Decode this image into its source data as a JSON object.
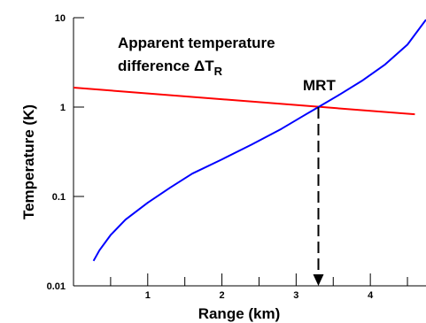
{
  "chart_data": {
    "type": "line",
    "xlabel": "Range (km)",
    "ylabel": "Temperature (K)",
    "yscale": "log",
    "xlim": [
      0,
      4.75
    ],
    "ylim": [
      0.01,
      10
    ],
    "x_ticks": [
      1,
      2,
      3,
      4
    ],
    "x_tick_labels": [
      "1",
      "2",
      "3",
      "4"
    ],
    "y_ticks": [
      0.01,
      0.1,
      1,
      10
    ],
    "y_tick_labels": [
      "0.01",
      "0.1",
      "1",
      "10"
    ],
    "grid": false,
    "series": [
      {
        "color": "#ff0000",
        "x": [
          0,
          4.6
        ],
        "y": [
          1.65,
          0.83
        ]
      },
      {
        "color": "#0000ff",
        "x": [
          0.27,
          0.35,
          0.5,
          0.7,
          1.0,
          1.3,
          1.6,
          2.0,
          2.4,
          2.8,
          3.1,
          3.3,
          3.6,
          3.9,
          4.2,
          4.5,
          4.75
        ],
        "y": [
          0.019,
          0.025,
          0.037,
          0.055,
          0.085,
          0.125,
          0.18,
          0.26,
          0.38,
          0.57,
          0.8,
          1.0,
          1.4,
          2.0,
          3.0,
          5.0,
          9.5
        ]
      }
    ],
    "annotations": {
      "line1": "Apparent temperature",
      "line2_prefix": "difference ",
      "delta": "Δ",
      "T": "T",
      "subscript": "R",
      "mrt": "MRT",
      "mrt_x": 3.3,
      "mrt_y": 1.0
    }
  }
}
